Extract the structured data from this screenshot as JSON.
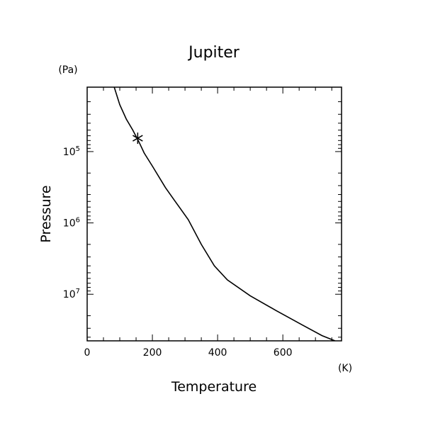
{
  "chart_data": {
    "type": "line",
    "title": "Jupiter",
    "xlabel": "Temperature",
    "ylabel": "Pressure",
    "x_unit": "(K)",
    "y_unit": "(Pa)",
    "x_scale": "linear",
    "y_scale": "log",
    "y_inverted": true,
    "xlim": [
      0,
      780
    ],
    "ylim": [
      12500,
      45000000
    ],
    "grid": false,
    "x_ticks": [
      {
        "value": 0,
        "label": "0"
      },
      {
        "value": 200,
        "label": "200"
      },
      {
        "value": 400,
        "label": "400"
      },
      {
        "value": 600,
        "label": "600"
      }
    ],
    "y_ticks": [
      {
        "value": 100000,
        "base": "10",
        "exp": "5"
      },
      {
        "value": 1000000,
        "base": "10",
        "exp": "6"
      },
      {
        "value": 10000000,
        "base": "10",
        "exp": "7"
      }
    ],
    "series": [
      {
        "values": [
          {
            "x": 83,
            "y": 12500
          },
          {
            "x": 100,
            "y": 22000
          },
          {
            "x": 120,
            "y": 35000
          },
          {
            "x": 140,
            "y": 50000
          },
          {
            "x": 160,
            "y": 75000
          },
          {
            "x": 175,
            "y": 105000
          },
          {
            "x": 200,
            "y": 160000
          },
          {
            "x": 240,
            "y": 320000
          },
          {
            "x": 270,
            "y": 500000
          },
          {
            "x": 310,
            "y": 900000
          },
          {
            "x": 350,
            "y": 2000000
          },
          {
            "x": 390,
            "y": 4000000
          },
          {
            "x": 430,
            "y": 6300000
          },
          {
            "x": 500,
            "y": 10500000
          },
          {
            "x": 580,
            "y": 17000000
          },
          {
            "x": 660,
            "y": 27000000
          },
          {
            "x": 720,
            "y": 38000000
          },
          {
            "x": 760,
            "y": 45000000
          }
        ]
      }
    ],
    "marker": {
      "x": 155,
      "y": 65000,
      "symbol": "asterisk"
    }
  }
}
